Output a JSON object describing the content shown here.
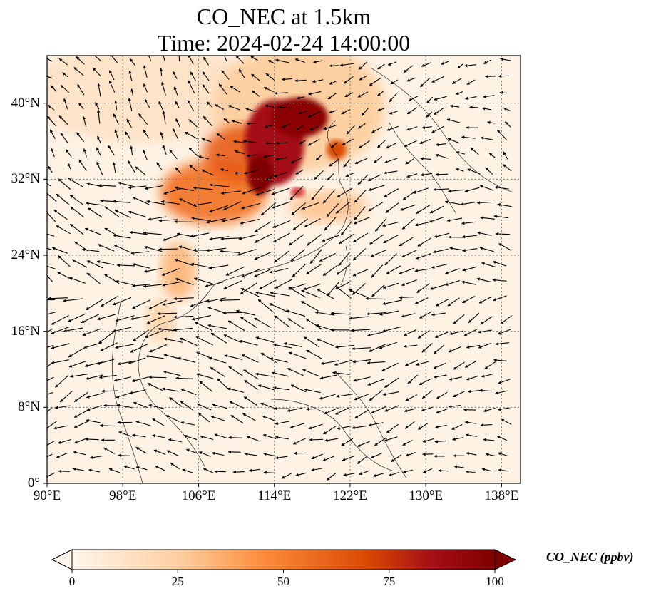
{
  "figure": {
    "title_line1": "CO_NEC at 1.5km",
    "title_line2": "Time: 2024-02-24 14:00:00"
  },
  "map": {
    "lon_range": [
      90,
      140
    ],
    "lat_range": [
      0,
      45
    ],
    "lon_ticks": [
      {
        "value": 90,
        "label": "90°E"
      },
      {
        "value": 98,
        "label": "98°E"
      },
      {
        "value": 106,
        "label": "106°E"
      },
      {
        "value": 114,
        "label": "114°E"
      },
      {
        "value": 122,
        "label": "122°E"
      },
      {
        "value": 130,
        "label": "130°E"
      },
      {
        "value": 138,
        "label": "138°E"
      }
    ],
    "lat_ticks": [
      {
        "value": 0,
        "label": "0°"
      },
      {
        "value": 8,
        "label": "8°N"
      },
      {
        "value": 16,
        "label": "16°N"
      },
      {
        "value": 24,
        "label": "24°N"
      },
      {
        "value": 32,
        "label": "32°N"
      },
      {
        "value": 40,
        "label": "40°N"
      }
    ],
    "gridlines": "dotted",
    "field": "CO_NEC concentration shading with wind vectors",
    "colors": {
      "low": "#fff5eb",
      "mid": "#fd8d3c",
      "high": "#7f0000"
    }
  },
  "colorbar": {
    "label": "CO_NEC (ppbv)",
    "min": 0,
    "max": 100,
    "extend": "both",
    "ticks": [
      "0",
      "25",
      "50",
      "75",
      "100"
    ],
    "tick_values": [
      0,
      25,
      50,
      75,
      100
    ]
  }
}
